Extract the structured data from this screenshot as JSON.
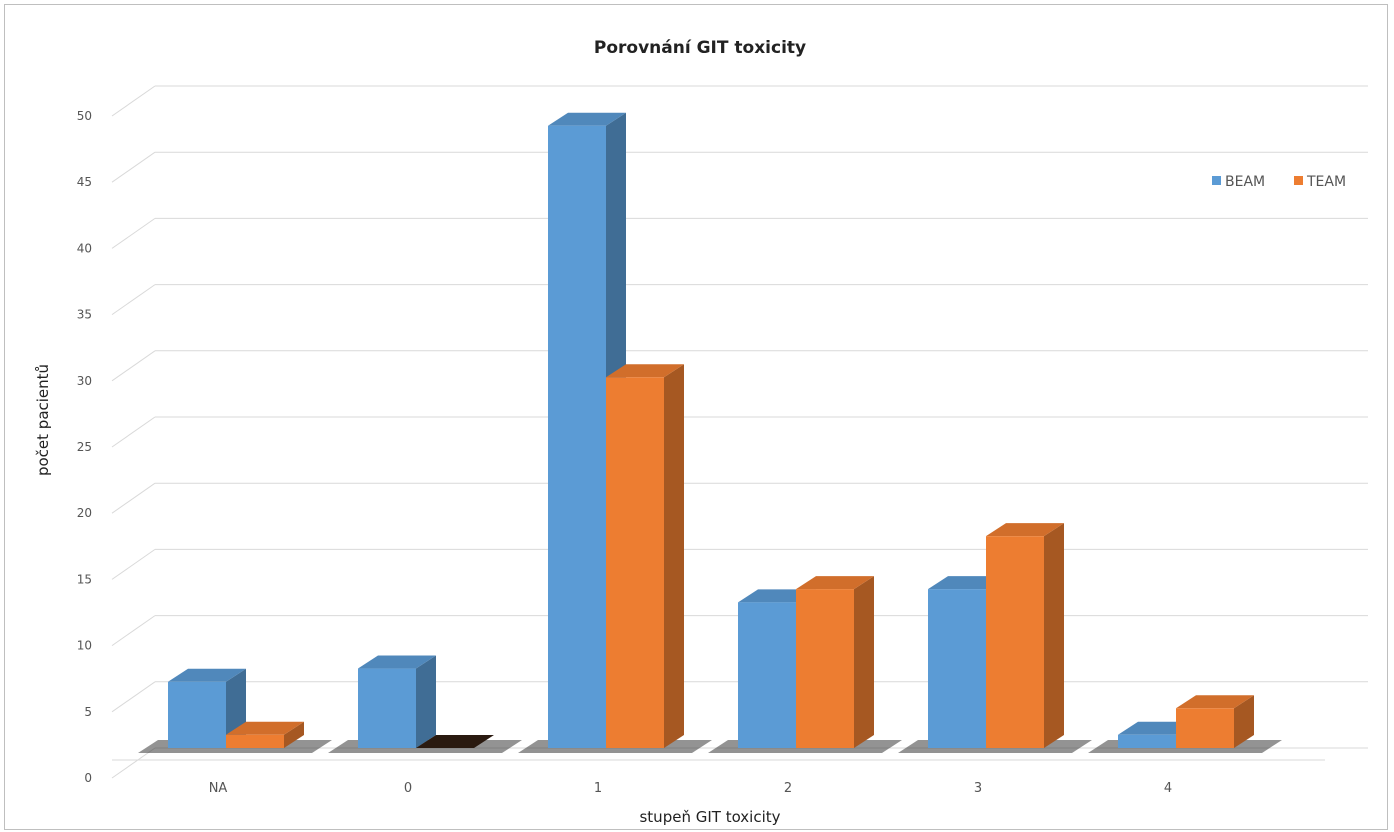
{
  "chart_data": {
    "type": "bar",
    "title": "Porovnání GIT toxicity",
    "xlabel": "stupeň GIT toxicity",
    "ylabel": "počet pacientů",
    "categories": [
      "NA",
      "0",
      "1",
      "2",
      "3",
      "4"
    ],
    "series": [
      {
        "name": "BEAM",
        "values": [
          5,
          6,
          47,
          11,
          12,
          1
        ],
        "color": "#5b9bd5"
      },
      {
        "name": "TEAM",
        "values": [
          1,
          0,
          28,
          12,
          16,
          3
        ],
        "color": "#ed7d31"
      }
    ],
    "ylim": [
      0,
      50
    ],
    "yticks": [
      0,
      5,
      10,
      15,
      20,
      25,
      30,
      35,
      40,
      45,
      50
    ],
    "grid": true,
    "legend_position": "top-right",
    "style": "3d-clustered-column"
  }
}
